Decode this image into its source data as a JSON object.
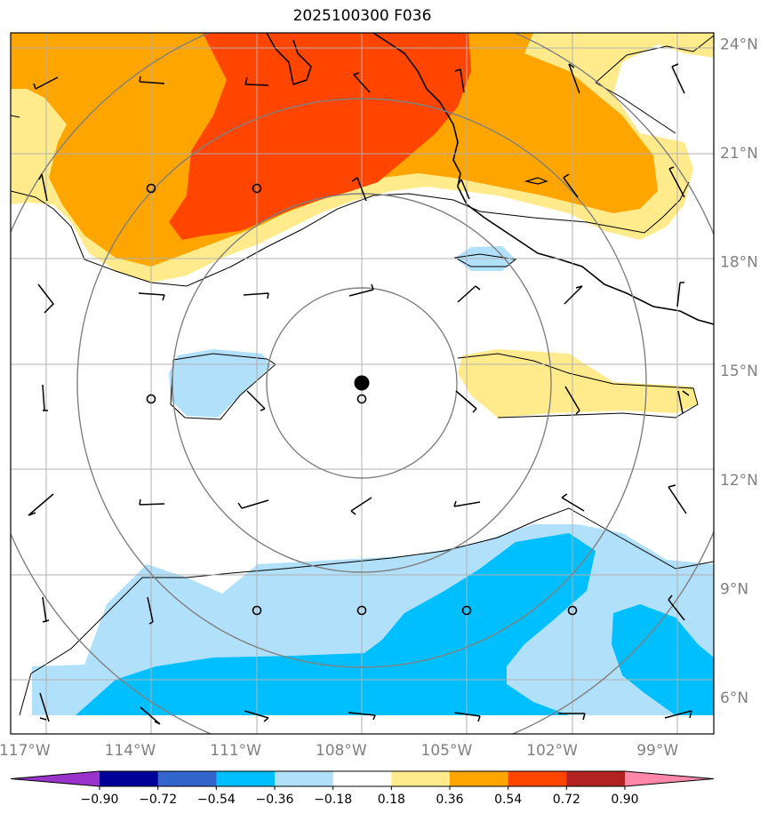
{
  "title": "2025100300 F036",
  "map": {
    "lat_labels": [
      "24°N",
      "21°N",
      "18°N",
      "15°N",
      "12°N",
      "9°N",
      "6°N"
    ],
    "lon_labels": [
      "117°W",
      "114°W",
      "111°W",
      "108°W",
      "105°W",
      "102°W",
      "99°W"
    ],
    "lat_values": [
      24,
      21,
      18,
      15,
      12,
      9,
      6
    ],
    "lon_values": [
      -117,
      -114,
      -111,
      -108,
      -105,
      -102,
      -99
    ],
    "extent": {
      "lon_min": -117.4,
      "lon_max": -97.4,
      "lat_min": 5.0,
      "lat_max": 24.3
    },
    "storm_center": {
      "lon": -108.0,
      "lat": 14.45
    },
    "range_rings_deg": [
      2.7,
      5.5,
      8.3,
      11.0
    ],
    "colors": {
      "neg_090": "#9933cc",
      "neg_072": "#000099",
      "neg_054": "#3366cc",
      "neg_036": "#00bfff",
      "neg_018": "#b0e0fa",
      "zero": "#ffffff",
      "pos_018": "#ffeb8c",
      "pos_036": "#ffa500",
      "pos_054": "#ff4500",
      "pos_072": "#b22222",
      "pos_090": "#ff88aa"
    }
  },
  "colorbar": {
    "tick_labels": [
      "−0.90",
      "−0.72",
      "−0.54",
      "−0.36",
      "−0.18",
      "0.18",
      "0.36",
      "0.54",
      "0.72",
      "0.90"
    ],
    "colors": [
      "#9933cc",
      "#000099",
      "#3366cc",
      "#00bfff",
      "#b0e0fa",
      "#ffffff",
      "#ffeb8c",
      "#ffa500",
      "#ff4500",
      "#b22222",
      "#ff88aa"
    ]
  }
}
